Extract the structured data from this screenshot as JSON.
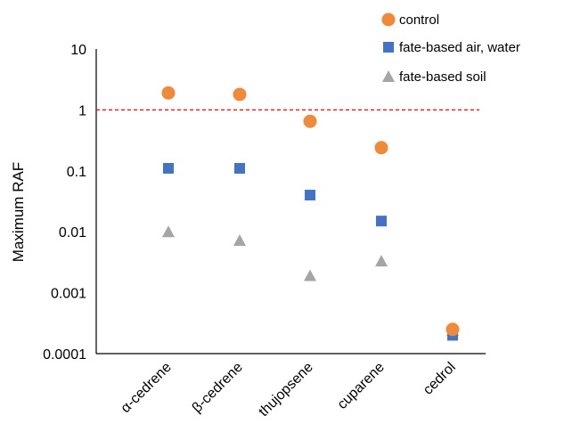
{
  "chart_data": {
    "type": "scatter",
    "ylabel": "Maximum RAF",
    "yscale": "log",
    "ylim": [
      0.0001,
      10
    ],
    "yticks": [
      "10",
      "1",
      "0.1",
      "0.01",
      "0.001",
      "0.0001"
    ],
    "categories": [
      "α-cedrene",
      "β-cedrene",
      "thujopsene",
      "cuparene",
      "cedrol"
    ],
    "grid": false,
    "legend_position": "top-right",
    "reference_line": {
      "y": 1,
      "color": "#ff0000",
      "style": "dashed"
    },
    "series": [
      {
        "name": "control",
        "marker": "circle",
        "color": "#f08a3b",
        "values": [
          1.9,
          1.8,
          0.65,
          0.24,
          0.00025
        ]
      },
      {
        "name": "fate-based air, water",
        "marker": "square",
        "color": "#4472c4",
        "values": [
          0.11,
          0.11,
          0.04,
          0.015,
          0.0002
        ]
      },
      {
        "name": "fate-based soil",
        "marker": "triangle",
        "color": "#a5a5a5",
        "values": [
          0.01,
          0.0072,
          0.0019,
          0.0033,
          0.00024
        ]
      }
    ]
  }
}
